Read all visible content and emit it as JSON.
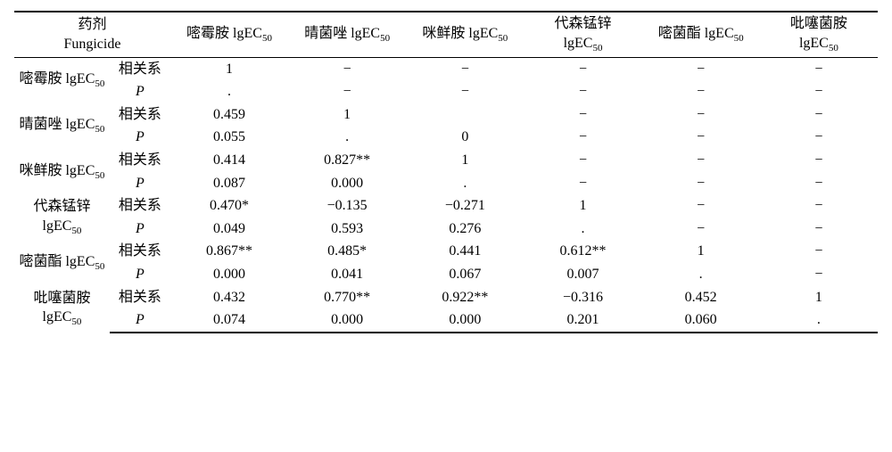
{
  "header": {
    "fungicide_label_cn": "药剂",
    "fungicide_label_en": "Fungicide",
    "columns": [
      "嘧霉胺 lgEC",
      "晴菌唑 lgEC",
      "咪鲜胺 lgEC",
      "代森锰锌 lgEC",
      "嘧菌酯 lgEC",
      "吡噻菌胺 lgEC"
    ],
    "sub50": "50"
  },
  "stat_labels": {
    "corr": "相关系",
    "p": "P"
  },
  "row_names": [
    "嘧霉胺 lgEC",
    "晴菌唑 lgEC",
    "咪鲜胺 lgEC",
    "代森锰锌 lgEC",
    "嘧菌酯 lgEC",
    "吡噻菌胺 lgEC"
  ],
  "rows": [
    {
      "corr": [
        "1",
        "−",
        "−",
        "−",
        "−",
        "−"
      ],
      "p": [
        ".",
        "−",
        "−",
        "−",
        "−",
        "−"
      ]
    },
    {
      "corr": [
        "0.459",
        "1",
        "",
        "−",
        "−",
        "−"
      ],
      "p": [
        "0.055",
        ".",
        "0",
        "−",
        "−",
        "−"
      ]
    },
    {
      "corr": [
        "0.414",
        "0.827**",
        "1",
        "−",
        "−",
        "−"
      ],
      "p": [
        "0.087",
        "0.000",
        ".",
        "−",
        "−",
        "−"
      ]
    },
    {
      "corr": [
        "0.470*",
        "−0.135",
        "−0.271",
        "1",
        "−",
        "−"
      ],
      "p": [
        "0.049",
        "0.593",
        "0.276",
        ".",
        "−",
        "−"
      ]
    },
    {
      "corr": [
        "0.867**",
        "0.485*",
        "0.441",
        "0.612**",
        "1",
        "−"
      ],
      "p": [
        "0.000",
        "0.041",
        "0.067",
        "0.007",
        ".",
        "−"
      ]
    },
    {
      "corr": [
        "0.432",
        "0.770**",
        "0.922**",
        "−0.316",
        "0.452",
        "1"
      ],
      "p": [
        "0.074",
        "0.000",
        "0.000",
        "0.201",
        "0.060",
        "."
      ]
    }
  ]
}
